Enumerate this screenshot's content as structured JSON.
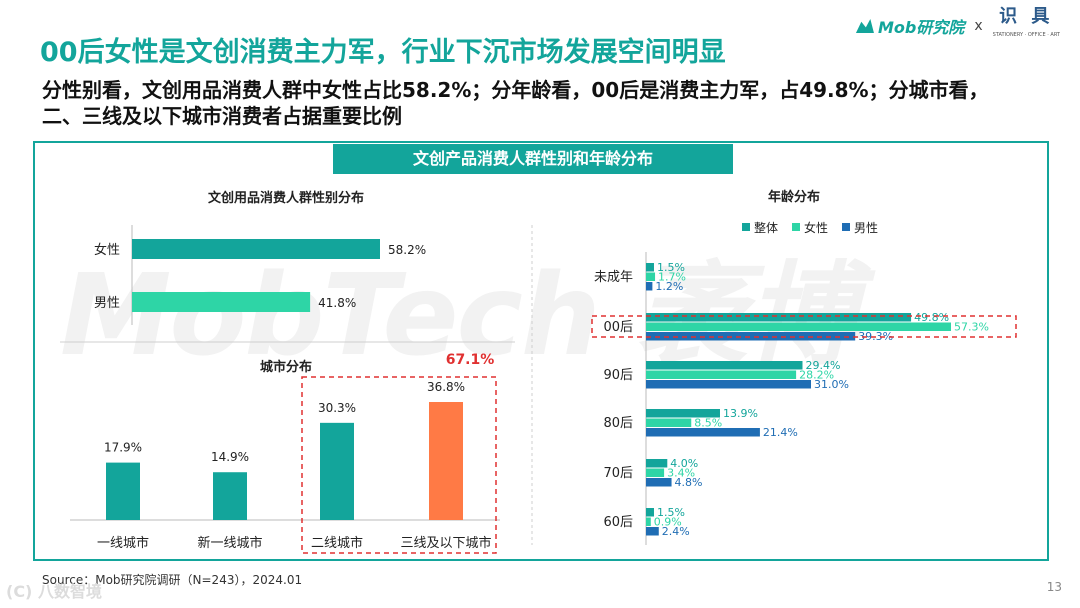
{
  "header": {
    "title": "00后女性是文创消费主力军，行业下沉市场发展空间明显",
    "subtitle": "分性别看，文创用品消费人群中女性占比58.2%；分年龄看，00后是消费主力军，占49.8%；分城市看，二、三线及以下城市消费者占据重要比例",
    "brand_name": "Mob研究院",
    "brand_separator": "x",
    "partner_name": "识 具",
    "partner_small": "STATIONERY · OFFICE · ART"
  },
  "panel": {
    "header": "文创产品消费人群性别和年龄分布",
    "watermark": "MobTech 袤博"
  },
  "footer": {
    "source": "Source：Mob研究院调研（N=243），2024.01",
    "page_number": "13",
    "corner_watermark": "(C) 八数智境"
  },
  "colors": {
    "teal": "#13a59b",
    "mint": "#2ed5a6",
    "blue": "#1f6db4",
    "orange": "#ff7a45",
    "highlight_red": "#e03030"
  },
  "chart_data": [
    {
      "id": "gender",
      "type": "bar",
      "orientation": "horizontal",
      "title": "文创用品消费人群性别分布",
      "categories": [
        "女性",
        "男性"
      ],
      "values": [
        58.2,
        41.8
      ],
      "labels": [
        "58.2%",
        "41.8%"
      ],
      "colors": [
        "#13a59b",
        "#2ed5a6"
      ]
    },
    {
      "id": "city",
      "type": "bar",
      "orientation": "vertical",
      "title": "城市分布",
      "categories": [
        "一线城市",
        "新一线城市",
        "二线城市",
        "三线及以下城市"
      ],
      "values": [
        17.9,
        14.9,
        30.3,
        36.8
      ],
      "labels": [
        "17.9%",
        "14.9%",
        "30.3%",
        "36.8%"
      ],
      "colors": [
        "#13a59b",
        "#13a59b",
        "#13a59b",
        "#ff7a45"
      ],
      "highlight": {
        "categories": [
          "二线城市",
          "三线及以下城市"
        ],
        "label": "67.1%"
      }
    },
    {
      "id": "age",
      "type": "bar",
      "orientation": "horizontal",
      "title": "年龄分布",
      "legend": [
        "整体",
        "女性",
        "男性"
      ],
      "categories": [
        "未成年",
        "00后",
        "90后",
        "80后",
        "70后",
        "60后"
      ],
      "series": [
        {
          "name": "整体",
          "color": "#13a59b",
          "values": [
            1.5,
            49.8,
            29.4,
            13.9,
            4.0,
            1.5
          ],
          "labels": [
            "1.5%",
            "49.8%",
            "29.4%",
            "13.9%",
            "4.0%",
            "1.5%"
          ]
        },
        {
          "name": "女性",
          "color": "#2ed5a6",
          "values": [
            1.7,
            57.3,
            28.2,
            8.5,
            3.4,
            0.9
          ],
          "labels": [
            "1.7%",
            "57.3%",
            "28.2%",
            "8.5%",
            "3.4%",
            "0.9%"
          ]
        },
        {
          "name": "男性",
          "color": "#1f6db4",
          "values": [
            1.2,
            39.3,
            31.0,
            21.4,
            4.8,
            2.4
          ],
          "labels": [
            "1.2%",
            "39.3%",
            "31.0%",
            "21.4%",
            "4.8%",
            "2.4%"
          ]
        }
      ],
      "highlight": {
        "category": "00后"
      }
    }
  ]
}
